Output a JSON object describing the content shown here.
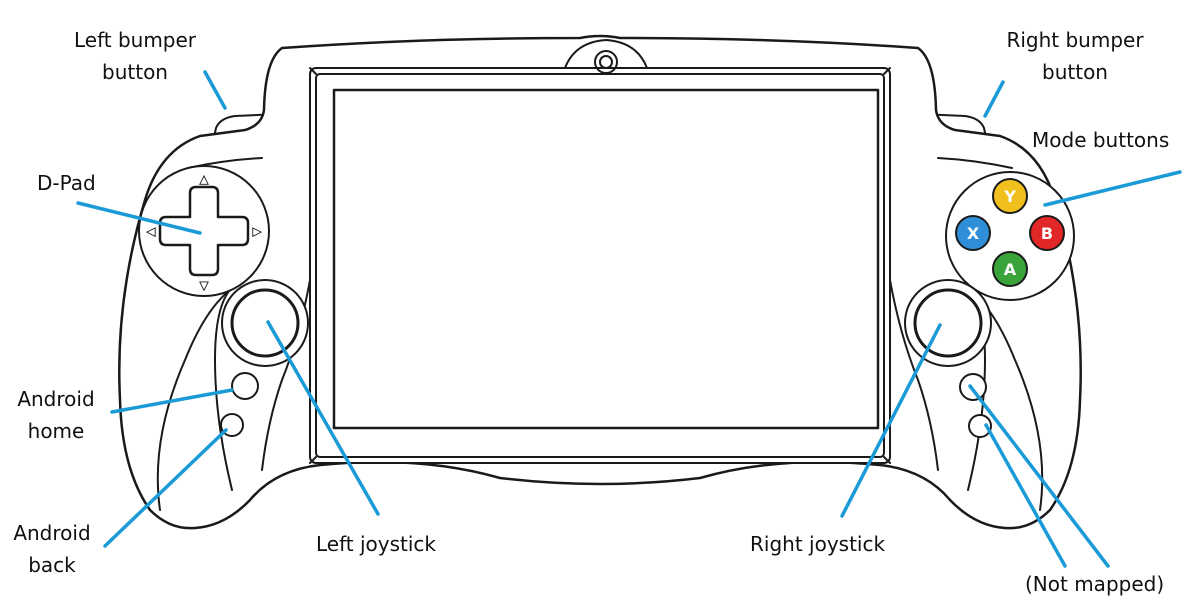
{
  "labels": {
    "left_bumper": [
      "Left bumper",
      "button"
    ],
    "right_bumper": [
      "Right bumper",
      "button"
    ],
    "mode_buttons": "Mode buttons",
    "dpad": "D-Pad",
    "android_home": [
      "Android",
      "home"
    ],
    "android_back": [
      "Android",
      "back"
    ],
    "left_joystick": "Left joystick",
    "right_joystick": "Right joystick",
    "not_mapped": "(Not mapped)"
  },
  "face_buttons": [
    {
      "letter": "Y",
      "color": "#f2c01e"
    },
    {
      "letter": "X",
      "color": "#2e8fd8"
    },
    {
      "letter": "B",
      "color": "#e12727"
    },
    {
      "letter": "A",
      "color": "#3aa43a"
    }
  ],
  "dpad_arrows": [
    "▲",
    "▼",
    "◀",
    "▶"
  ],
  "colors": {
    "callout": "#1a9ad6",
    "outline": "#1a1a1a",
    "text": "#111111"
  }
}
